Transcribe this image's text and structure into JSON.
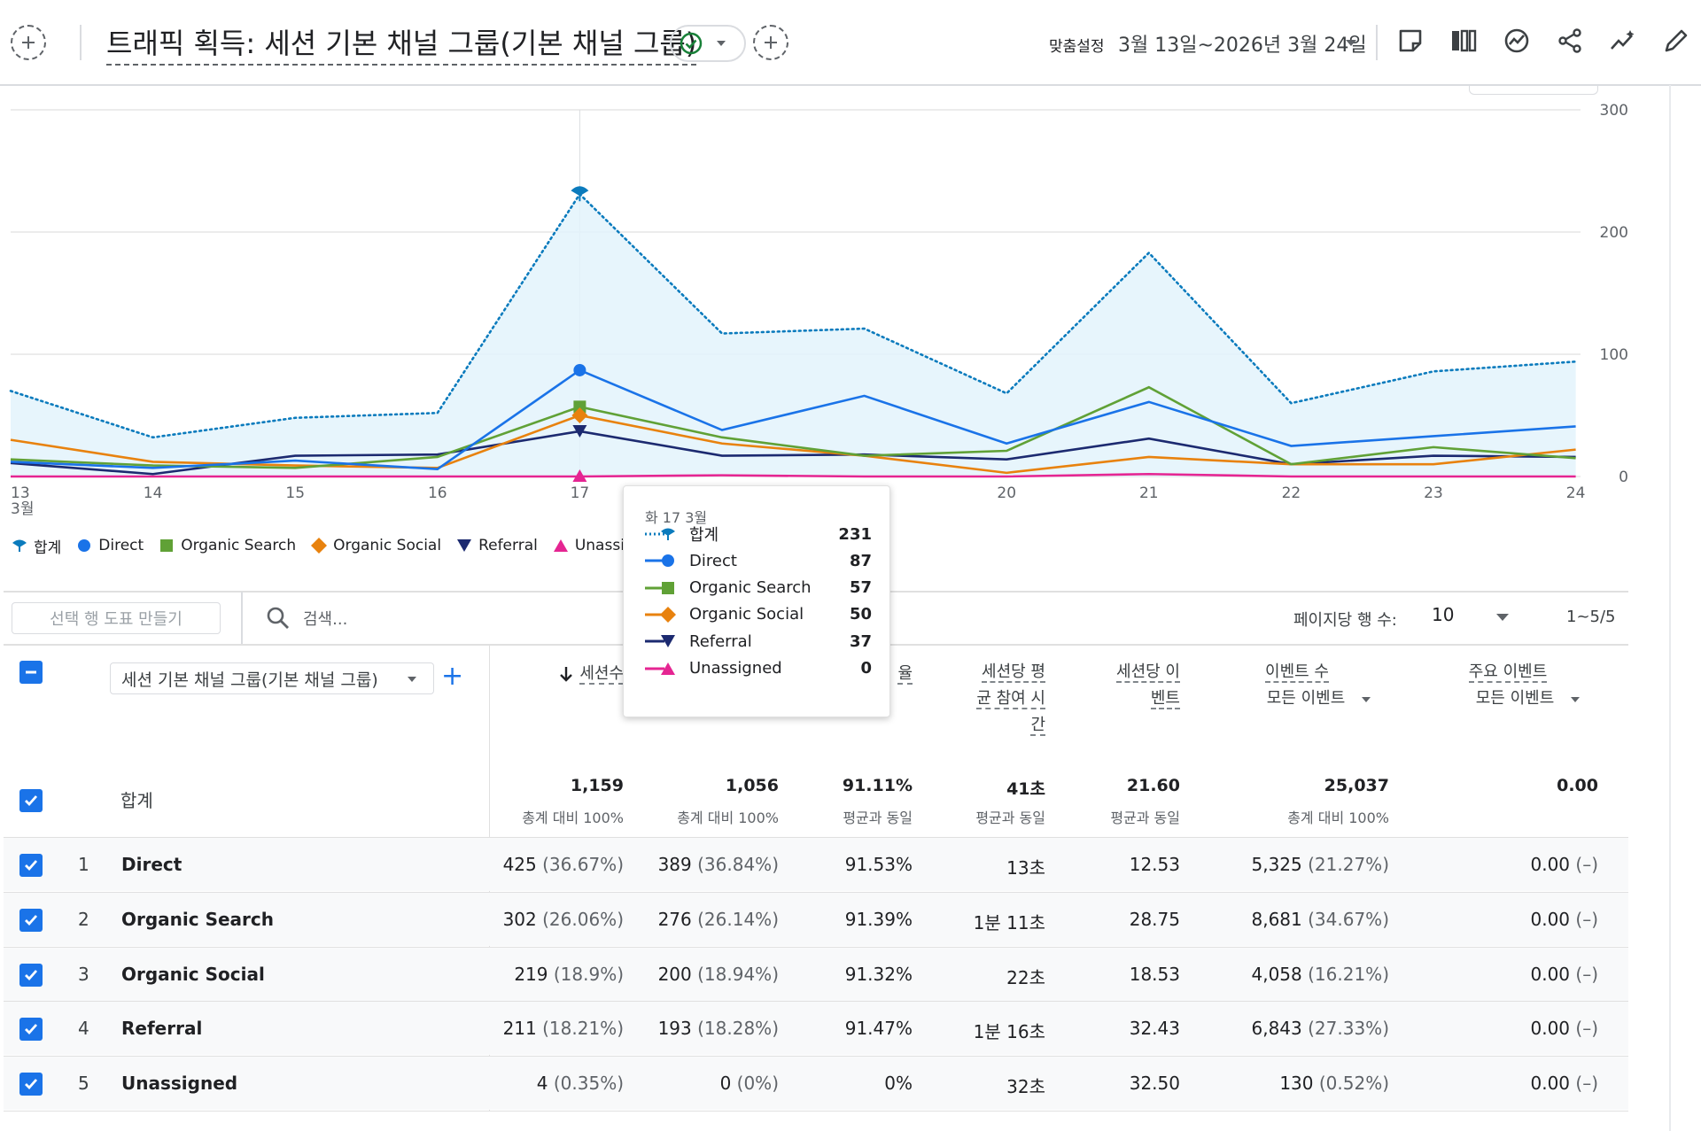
{
  "header": {
    "title": "트래픽 획득: 세션 기본 채널 그룹(기본 채널 그룹)",
    "compare_label": "맞춤설정",
    "date_range": "3월 13일~2026년 3월 24일"
  },
  "chart_data": {
    "type": "line",
    "x": [
      "13",
      "14",
      "15",
      "16",
      "17",
      "18",
      "19",
      "20",
      "21",
      "22",
      "23",
      "24"
    ],
    "x_month_label": "3월",
    "ylim": [
      0,
      300
    ],
    "yticks": [
      "0",
      "100",
      "200",
      "300"
    ],
    "grid": true,
    "legend_position": "bottom-left",
    "series": [
      {
        "name": "합계",
        "color": "#0b7bbd",
        "style": "dotted-area",
        "values": [
          70,
          32,
          48,
          52,
          231,
          117,
          121,
          68,
          183,
          60,
          86,
          94
        ]
      },
      {
        "name": "Direct",
        "color": "#1a73e8",
        "style": "line",
        "values": [
          12,
          7,
          13,
          6,
          87,
          38,
          66,
          27,
          61,
          25,
          33,
          41
        ]
      },
      {
        "name": "Organic Search",
        "color": "#60a136",
        "style": "line",
        "values": [
          14,
          9,
          7,
          16,
          57,
          32,
          17,
          21,
          73,
          10,
          24,
          15
        ]
      },
      {
        "name": "Organic Social",
        "color": "#e8820e",
        "style": "line",
        "values": [
          30,
          12,
          9,
          7,
          50,
          27,
          17,
          3,
          16,
          10,
          10,
          22
        ]
      },
      {
        "name": "Referral",
        "color": "#1c2a70",
        "style": "line",
        "values": [
          11,
          2,
          17,
          18,
          37,
          17,
          18,
          14,
          31,
          10,
          17,
          16
        ]
      },
      {
        "name": "Unassigned",
        "color": "#e52592",
        "style": "line",
        "values": [
          0,
          0,
          0,
          0,
          0,
          1,
          0,
          0,
          2,
          0,
          0,
          0
        ]
      }
    ]
  },
  "tooltip": {
    "date": "화 17 3월",
    "rows": [
      {
        "label": "합계",
        "value": "231"
      },
      {
        "label": "Direct",
        "value": "87"
      },
      {
        "label": "Organic Search",
        "value": "57"
      },
      {
        "label": "Organic Social",
        "value": "50"
      },
      {
        "label": "Referral",
        "value": "37"
      },
      {
        "label": "Unassigned",
        "value": "0"
      }
    ]
  },
  "table": {
    "chart_button": "선택 행 도표 만들기",
    "search_placeholder": "검색...",
    "rows_per_page_label": "페이지당 행 수:",
    "rows_per_page": "10",
    "pager": "1~5/5",
    "dimension_select": "세션 기본 채널 그룹(기본 채널 그룹)",
    "headers": {
      "sessions": "세션수",
      "rate": "율",
      "avg_engagement": [
        "세션당 평",
        "균 참여 시",
        "간"
      ],
      "events_per_session": [
        "세션당 이",
        "벤트"
      ],
      "event_count": "이벤트 수",
      "event_count_sub": "모든 이벤트",
      "key_events": "주요 이벤트",
      "key_events_sub": "모든 이벤트"
    },
    "totals": {
      "label": "합계",
      "values": [
        "1,159",
        "1,056",
        "91.11%",
        "41초",
        "21.60",
        "25,037",
        "0.00"
      ],
      "subs": [
        "총계 대비 100%",
        "총계 대비 100%",
        "평균과 동일",
        "평균과 동일",
        "평균과 동일",
        "총계 대비 100%",
        ""
      ]
    },
    "rows": [
      {
        "num": "1",
        "name": "Direct",
        "sessions": "425",
        "sessions_pct": "(36.67%)",
        "engaged": "389",
        "engaged_pct": "(36.84%)",
        "rate": "91.53%",
        "avg_time": "13초",
        "eps": "12.53",
        "events": "5,325",
        "events_pct": "(21.27%)",
        "key": "0.00",
        "key_pct": "(–)"
      },
      {
        "num": "2",
        "name": "Organic Search",
        "sessions": "302",
        "sessions_pct": "(26.06%)",
        "engaged": "276",
        "engaged_pct": "(26.14%)",
        "rate": "91.39%",
        "avg_time": "1분 11초",
        "eps": "28.75",
        "events": "8,681",
        "events_pct": "(34.67%)",
        "key": "0.00",
        "key_pct": "(–)"
      },
      {
        "num": "3",
        "name": "Organic Social",
        "sessions": "219",
        "sessions_pct": "(18.9%)",
        "engaged": "200",
        "engaged_pct": "(18.94%)",
        "rate": "91.32%",
        "avg_time": "22초",
        "eps": "18.53",
        "events": "4,058",
        "events_pct": "(16.21%)",
        "key": "0.00",
        "key_pct": "(–)"
      },
      {
        "num": "4",
        "name": "Referral",
        "sessions": "211",
        "sessions_pct": "(18.21%)",
        "engaged": "193",
        "engaged_pct": "(18.28%)",
        "rate": "91.47%",
        "avg_time": "1분 16초",
        "eps": "32.43",
        "events": "6,843",
        "events_pct": "(27.33%)",
        "key": "0.00",
        "key_pct": "(–)"
      },
      {
        "num": "5",
        "name": "Unassigned",
        "sessions": "4",
        "sessions_pct": "(0.35%)",
        "engaged": "0",
        "engaged_pct": "(0%)",
        "rate": "0%",
        "avg_time": "32초",
        "eps": "32.50",
        "events": "130",
        "events_pct": "(0.52%)",
        "key": "0.00",
        "key_pct": "(–)"
      }
    ]
  }
}
